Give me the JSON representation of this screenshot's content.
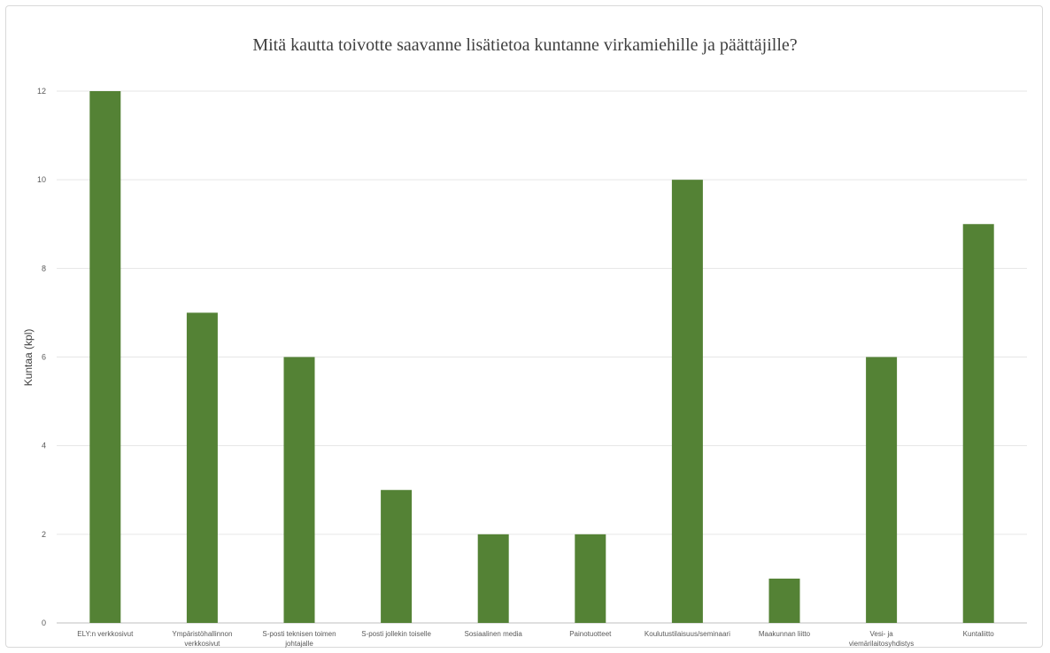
{
  "chart_data": {
    "type": "bar",
    "title": "Mitä kautta toivotte saavanne lisätietoa kuntanne virkamiehille ja päättäjille?",
    "xlabel": "",
    "ylabel": "Kuntaa (kpl)",
    "ylim": [
      0,
      12
    ],
    "yticks": [
      0,
      2,
      4,
      6,
      8,
      10,
      12
    ],
    "grid": true,
    "bar_color": "#548235",
    "categories": [
      [
        "ELY:n verkkosivut"
      ],
      [
        "Ympäristöhallinnon",
        "verkkosivut"
      ],
      [
        "S-posti teknisen toimen",
        "johtajalle"
      ],
      [
        "S-posti jollekin toiselle"
      ],
      [
        "Sosiaalinen media"
      ],
      [
        "Painotuotteet"
      ],
      [
        "Koulutustilaisuus/seminaari"
      ],
      [
        "Maakunnan liitto"
      ],
      [
        "Vesi- ja",
        "viemärilaitosyhdistys"
      ],
      [
        "Kuntaliitto"
      ]
    ],
    "values": [
      12,
      7,
      6,
      3,
      2,
      2,
      10,
      1,
      6,
      9
    ]
  }
}
